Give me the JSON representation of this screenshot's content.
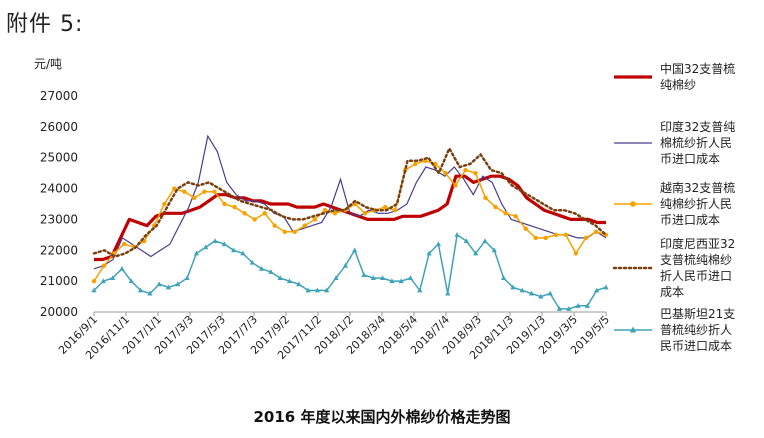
{
  "heading": "附件 5:",
  "caption": "2016 年度以来国内外棉纱价格走势图",
  "chart_data": {
    "type": "line",
    "title": "2016 年度以来国内外棉纱价格走势图",
    "ylabel": "元/吨",
    "ylim": [
      20000,
      27000
    ],
    "yticks": [
      "27000",
      "26000",
      "25000",
      "24000",
      "23000",
      "22000",
      "21000",
      "20000"
    ],
    "x_tick_labels": [
      "2016/9/1",
      "2016/11/1",
      "2017/1/1",
      "2017/3/3",
      "2017/5/3",
      "2017/7/3",
      "2017/9/2",
      "2017/11/2",
      "2018/1/2",
      "2018/3/4",
      "2018/5/4",
      "2018/7/4",
      "2018/9/3",
      "2018/11/3",
      "2019/1/3",
      "2019/3/5",
      "2019/5/5"
    ],
    "grid": false,
    "legend_position": "right",
    "series": [
      {
        "name": "中国32支普梳纯棉纱",
        "color": "#c00000",
        "style": "thick",
        "values": [
          21700,
          21700,
          21800,
          22400,
          23000,
          22900,
          22800,
          23100,
          23200,
          23200,
          23200,
          23300,
          23400,
          23600,
          23800,
          23800,
          23700,
          23700,
          23600,
          23600,
          23500,
          23500,
          23500,
          23400,
          23400,
          23400,
          23500,
          23400,
          23300,
          23200,
          23100,
          23000,
          23000,
          23000,
          23000,
          23100,
          23100,
          23100,
          23200,
          23300,
          23500,
          24400,
          24400,
          24200,
          24300,
          24400,
          24400,
          24300,
          24100,
          23700,
          23500,
          23300,
          23200,
          23100,
          23000,
          23000,
          23000,
          22900,
          22900
        ]
      },
      {
        "name": "印度32支普纯棉梳纱折人民币进口成本",
        "color": "#4b3c8e",
        "style": "thin",
        "values": [
          21400,
          21500,
          21700,
          22400,
          22200,
          22000,
          21800,
          22000,
          22200,
          22800,
          23400,
          24200,
          25700,
          25200,
          24200,
          23800,
          23600,
          23600,
          23500,
          23200,
          23100,
          22600,
          22700,
          22800,
          22900,
          23400,
          24300,
          23200,
          23100,
          23300,
          23200,
          23200,
          23300,
          23500,
          24200,
          24700,
          24600,
          24400,
          24700,
          24300,
          23800,
          24400,
          24200,
          23500,
          23000,
          22900,
          22800,
          22700,
          22600,
          22500,
          22500,
          22400,
          22400,
          22600,
          22400
        ]
      },
      {
        "name": "越南32支普梳纯棉纱折人民币进口成本",
        "color": "#f5a200",
        "style": "dotted-line",
        "values": [
          21000,
          21500,
          21900,
          22200,
          22100,
          22300,
          22800,
          23500,
          24000,
          23900,
          23700,
          23900,
          23900,
          23500,
          23400,
          23200,
          23000,
          23200,
          22800,
          22600,
          22600,
          22800,
          23000,
          23300,
          23200,
          23300,
          23500,
          23200,
          23300,
          23400,
          23300,
          24600,
          24800,
          24900,
          24800,
          24500,
          24100,
          24600,
          24500,
          23700,
          23400,
          23200,
          23100,
          22700,
          22400,
          22400,
          22500,
          22500,
          21900,
          22400,
          22600,
          22500
        ]
      },
      {
        "name": "印度尼西亚32支普梳纯棉纱折人民币进口成本",
        "color": "#7b4010",
        "style": "dotted",
        "values": [
          21900,
          22000,
          21800,
          21900,
          22100,
          22500,
          22800,
          23400,
          24000,
          24200,
          24100,
          24200,
          24000,
          23800,
          23600,
          23500,
          23400,
          23300,
          23100,
          23000,
          23000,
          23100,
          23200,
          23300,
          23300,
          23600,
          23400,
          23300,
          23300,
          23500,
          24900,
          24900,
          25000,
          24500,
          25300,
          24700,
          24800,
          25100,
          24600,
          24500,
          24100,
          23900,
          23700,
          23500,
          23300,
          23300,
          23200,
          23000,
          22800,
          22500
        ]
      },
      {
        "name": "巴基斯坦21支普梳纯纱折人民币进口成本",
        "color": "#3fa3b8",
        "style": "triangle-markers",
        "values": [
          20700,
          21000,
          21100,
          21400,
          21000,
          20700,
          20600,
          20900,
          20800,
          20900,
          21100,
          21900,
          22100,
          22300,
          22200,
          22000,
          21900,
          21600,
          21400,
          21300,
          21100,
          21000,
          20900,
          20700,
          20700,
          20700,
          21100,
          21500,
          22000,
          21200,
          21100,
          21100,
          21000,
          21000,
          21100,
          20700,
          21900,
          22200,
          20600,
          22500,
          22300,
          21900,
          22300,
          22000,
          21100,
          20800,
          20700,
          20600,
          20500,
          20600,
          20100,
          20100,
          20200,
          20200,
          20700,
          20800
        ]
      }
    ]
  }
}
